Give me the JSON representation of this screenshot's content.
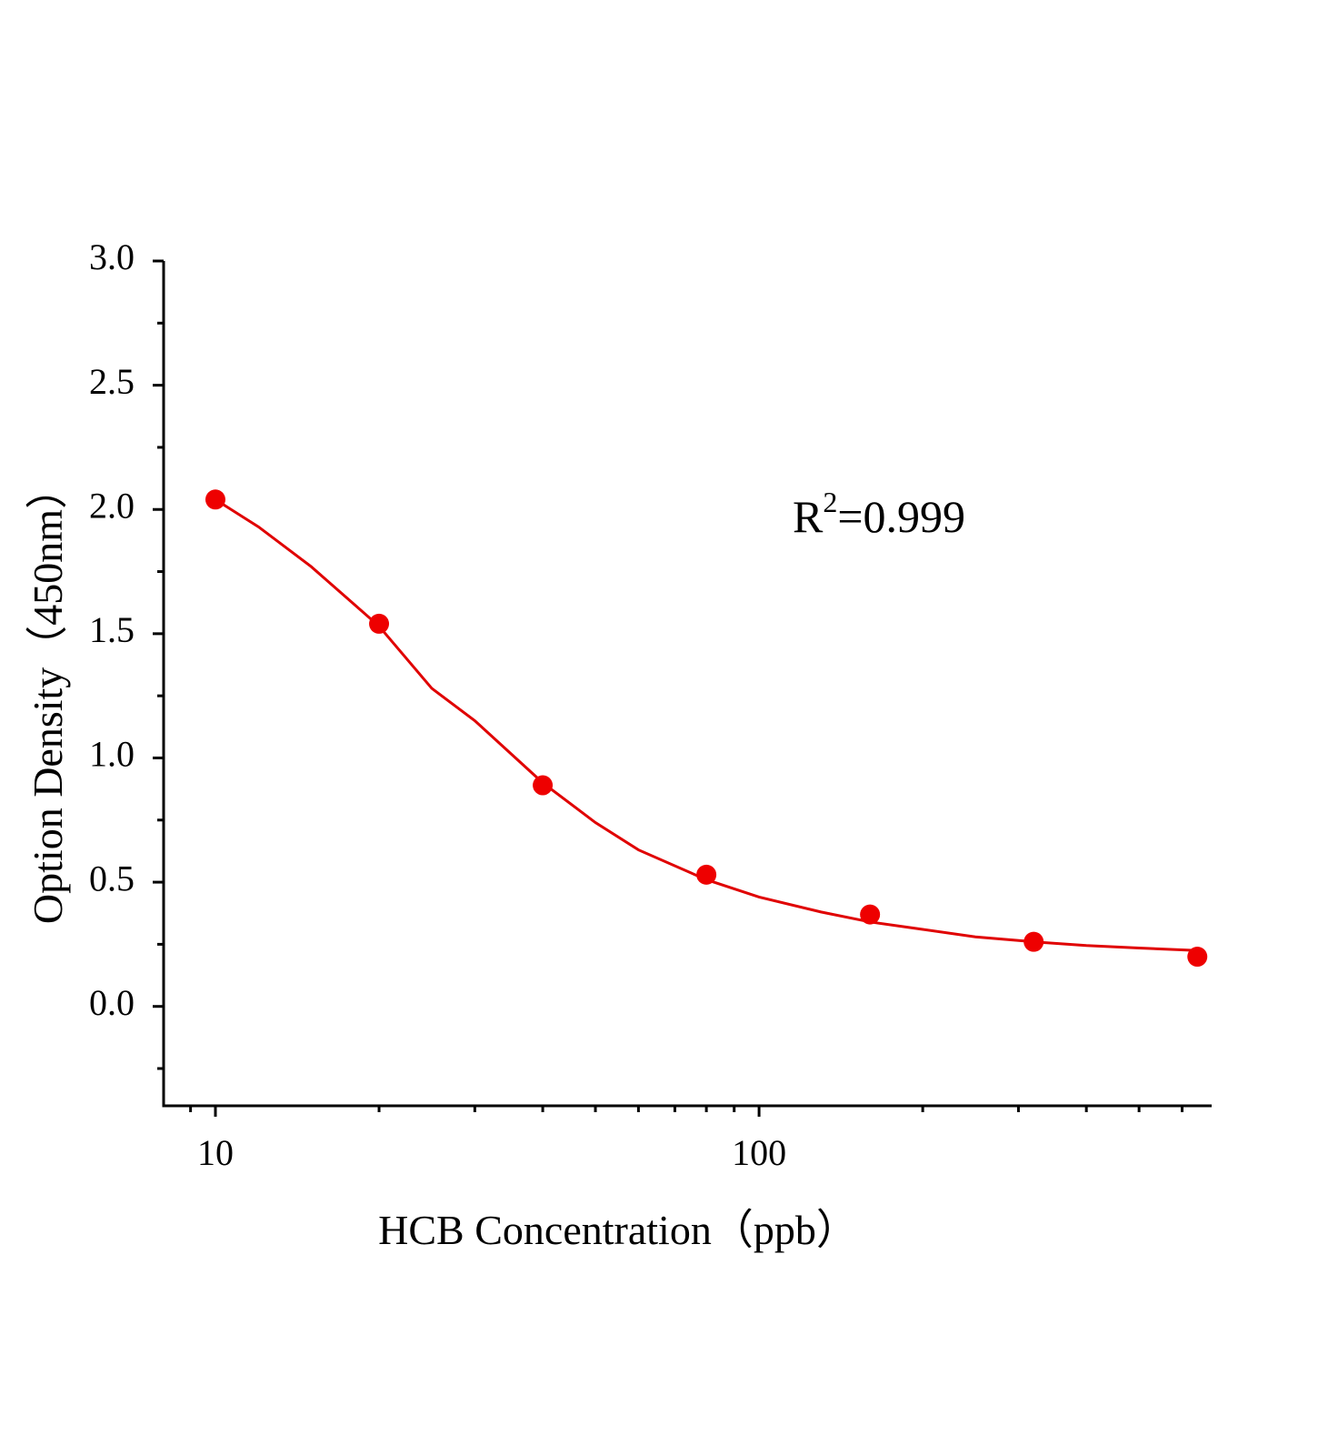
{
  "chart_data": {
    "type": "scatter",
    "x_label": "HCB Concentration（ppb）",
    "y_label": "Option Density（450nm）",
    "annotation": [
      "R",
      "2",
      "=0.999"
    ],
    "xscale": "log",
    "xlim": [
      8.03,
      680
    ],
    "xticks": [
      10,
      100
    ],
    "xminorticks": [
      9,
      20,
      30,
      40,
      50,
      60,
      70,
      80,
      90,
      200,
      300,
      400,
      500,
      600
    ],
    "ylim": [
      -0.4,
      3.0
    ],
    "yticks": [
      {
        "value": 0,
        "label": "0.0"
      },
      0.5,
      {
        "value": 1,
        "label": "1.0"
      },
      1.5,
      {
        "value": 2,
        "label": "2.0"
      },
      2.5,
      {
        "value": 3,
        "label": "3.0"
      }
    ],
    "yminorticks": [
      -0.25,
      0.25,
      0.75,
      1.25,
      1.75,
      2.25,
      2.75
    ],
    "series": [
      {
        "type": "scatter",
        "color": "#ee0000",
        "x": [
          10,
          20,
          40,
          80,
          160,
          320,
          640
        ],
        "values": [
          2.04,
          1.54,
          0.89,
          0.53,
          0.37,
          0.26,
          0.2
        ]
      },
      {
        "type": "line",
        "color": "#e00000",
        "x": [
          10,
          12,
          15,
          20,
          25,
          30,
          40,
          50,
          60,
          80,
          100,
          130,
          160,
          200,
          250,
          320,
          400,
          500,
          640
        ],
        "values": [
          2.04,
          1.93,
          1.77,
          1.53,
          1.28,
          1.15,
          0.9,
          0.74,
          0.63,
          0.51,
          0.44,
          0.38,
          0.34,
          0.31,
          0.28,
          0.26,
          0.245,
          0.235,
          0.225
        ]
      }
    ]
  }
}
